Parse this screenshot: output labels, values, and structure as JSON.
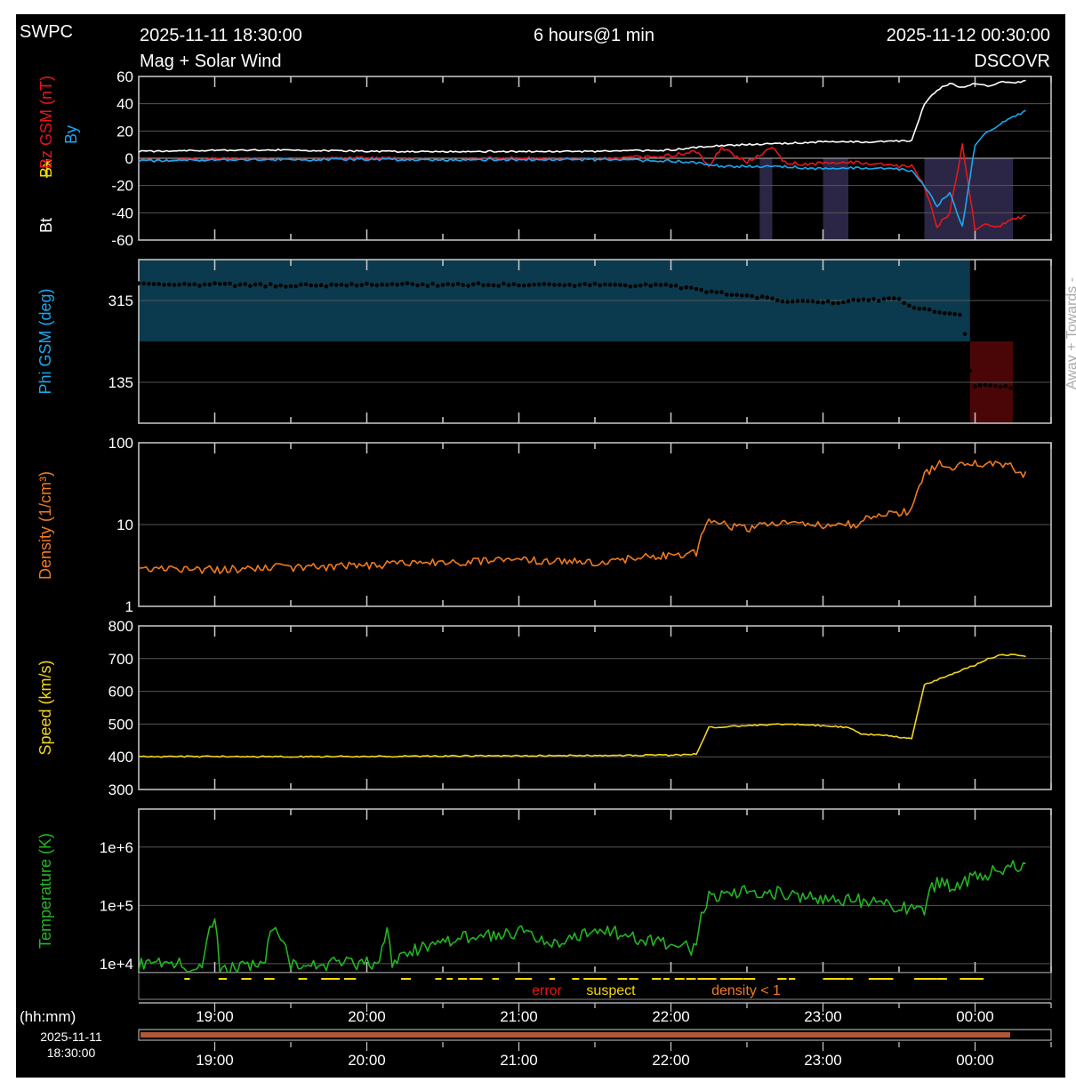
{
  "header": {
    "org": "SWPC",
    "start_time": "2025-11-11 18:30:00",
    "span": "6 hours@1 min",
    "end_time": "2025-11-12 00:30:00",
    "subtitle": "Mag + Solar Wind",
    "source": "DSCOVR"
  },
  "colors": {
    "background": "#000000",
    "frame": "#ffffff",
    "grid": "#555555",
    "bt": "#ffffff",
    "bz": "#e8161a",
    "bx": "#f5d90a",
    "by": "#1aa8f0",
    "density": "#f07a1e",
    "speed": "#f2d51d",
    "temperature": "#23b523",
    "phi_away": "#0b3a4e",
    "phi_towards": "#4a0606",
    "error": "#e8161a",
    "suspect": "#f5d90a",
    "density_flag": "#f07a1e",
    "timebar": "#b0563b"
  },
  "time_axis": {
    "start_hour": 18.5,
    "end_hour": 24.5,
    "tick_labels": [
      "19:00",
      "20:00",
      "21:00",
      "22:00",
      "23:00",
      "00:00"
    ],
    "unit_label": "(hh:mm)",
    "date_label": "2025-11-11",
    "time_label": "18:30:00"
  },
  "flags": {
    "error": "error",
    "suspect": "suspect",
    "density": "density < 1"
  },
  "chart_data": [
    {
      "type": "line",
      "name": "mag",
      "ylabel_parts": [
        "Bt",
        "Bx",
        "Bz GSM (nT)",
        "By"
      ],
      "ylim": [
        -60,
        60
      ],
      "ytick_labels": [
        "60",
        "40",
        "20",
        "0",
        "-20",
        "-40",
        "-60"
      ],
      "series": [
        {
          "name": "Bt",
          "key": "bt",
          "x": [
            "18:30",
            "19:00",
            "19:30",
            "20:00",
            "20:30",
            "21:00",
            "21:30",
            "22:00",
            "22:15",
            "22:30",
            "22:45",
            "23:00",
            "23:20",
            "23:35",
            "23:40",
            "23:45",
            "23:50",
            "23:55",
            "00:00",
            "00:05",
            "00:10",
            "00:15",
            "00:20"
          ],
          "values": [
            5,
            6,
            6,
            5,
            5,
            5,
            5,
            6,
            9,
            10,
            11,
            12,
            12,
            13,
            40,
            50,
            55,
            52,
            55,
            53,
            56,
            55,
            57
          ]
        },
        {
          "name": "Bz",
          "key": "bz",
          "x": [
            "18:30",
            "19:00",
            "19:30",
            "20:00",
            "20:30",
            "21:00",
            "21:30",
            "22:00",
            "22:10",
            "22:15",
            "22:20",
            "22:30",
            "22:40",
            "22:45",
            "22:50",
            "23:00",
            "23:15",
            "23:30",
            "23:35",
            "23:40",
            "23:45",
            "23:50",
            "23:55",
            "00:00",
            "00:05",
            "00:10",
            "00:15",
            "00:20"
          ],
          "values": [
            -2,
            0,
            -1,
            0,
            -1,
            0,
            -1,
            2,
            5,
            -5,
            8,
            -3,
            8,
            -3,
            -4,
            -4,
            -3,
            -6,
            -5,
            -20,
            -50,
            -40,
            10,
            -52,
            -48,
            -50,
            -45,
            -42
          ]
        },
        {
          "name": "By",
          "key": "by",
          "x": [
            "18:30",
            "19:00",
            "19:30",
            "20:00",
            "20:30",
            "21:00",
            "21:30",
            "22:00",
            "22:15",
            "22:20",
            "22:30",
            "22:45",
            "23:00",
            "23:15",
            "23:30",
            "23:35",
            "23:40",
            "23:45",
            "23:50",
            "23:55",
            "00:00",
            "00:05",
            "00:10",
            "00:15",
            "00:20"
          ],
          "values": [
            -2,
            -1,
            -1,
            -1,
            -1,
            -1,
            -1,
            -2,
            -4,
            -6,
            -6,
            -6,
            -8,
            -7,
            -8,
            -9,
            -20,
            -35,
            -25,
            -50,
            10,
            20,
            25,
            30,
            35
          ]
        }
      ],
      "away_towards_shading": [
        [
          "22:35",
          "22:40"
        ],
        [
          "23:00",
          "23:10"
        ],
        [
          "23:40",
          "00:15"
        ]
      ]
    },
    {
      "type": "scatter",
      "name": "phi",
      "ylabel": "Phi GSM (deg)",
      "right_label": "Away +   Towards -",
      "ylim": [
        45,
        405
      ],
      "ytick_labels": [
        "315",
        "135"
      ],
      "series": [
        {
          "name": "Phi GSM",
          "key": "phi",
          "x": [
            "18:30",
            "19:00",
            "19:30",
            "20:00",
            "20:30",
            "21:00",
            "21:30",
            "22:00",
            "22:15",
            "22:30",
            "22:45",
            "23:00",
            "23:15",
            "23:30",
            "23:35",
            "23:40",
            "23:45",
            "23:50",
            "23:55",
            "23:58",
            "00:00",
            "00:05",
            "00:10",
            "00:15",
            "00:20"
          ],
          "values": [
            350,
            350,
            348,
            350,
            350,
            350,
            349,
            348,
            335,
            325,
            315,
            310,
            315,
            318,
            300,
            295,
            290,
            285,
            280,
            160,
            125,
            128,
            125,
            123,
            123
          ]
        }
      ],
      "away_span": [
        "18:30",
        "23:58"
      ],
      "towards_span": [
        "23:58",
        "00:15"
      ]
    },
    {
      "type": "line",
      "name": "density",
      "ylabel": "Density (1/cm³)",
      "yscale": "log",
      "ylim": [
        1,
        100
      ],
      "ytick_labels": [
        "100",
        "10",
        "1"
      ],
      "series": [
        {
          "name": "Density",
          "key": "density",
          "x": [
            "18:30",
            "19:00",
            "19:30",
            "20:00",
            "20:30",
            "21:00",
            "21:30",
            "22:00",
            "22:10",
            "22:15",
            "22:30",
            "22:45",
            "23:00",
            "23:15",
            "23:20",
            "23:30",
            "23:35",
            "23:40",
            "23:45",
            "23:50",
            "00:00",
            "00:10",
            "00:15",
            "00:20"
          ],
          "values": [
            3.0,
            2.8,
            3.0,
            3.1,
            3.5,
            3.6,
            3.5,
            4.2,
            4.5,
            10.5,
            9.0,
            10.5,
            10.0,
            10.0,
            13.5,
            14.0,
            14.5,
            40,
            55,
            50,
            55,
            55,
            50,
            40
          ]
        }
      ]
    },
    {
      "type": "line",
      "name": "speed",
      "ylabel": "Speed (km/s)",
      "ylim": [
        300,
        800
      ],
      "ytick_labels": [
        "800",
        "700",
        "600",
        "500",
        "400",
        "300"
      ],
      "series": [
        {
          "name": "Speed",
          "key": "speed",
          "x": [
            "18:30",
            "19:00",
            "19:30",
            "20:00",
            "20:30",
            "21:00",
            "21:30",
            "22:00",
            "22:10",
            "22:15",
            "22:30",
            "22:45",
            "23:00",
            "23:10",
            "23:15",
            "23:25",
            "23:35",
            "23:40",
            "23:45",
            "23:50",
            "23:55",
            "00:00",
            "00:05",
            "00:10",
            "00:15",
            "00:20"
          ],
          "values": [
            400,
            401,
            400,
            401,
            402,
            403,
            404,
            405,
            408,
            490,
            495,
            500,
            495,
            490,
            470,
            465,
            455,
            620,
            635,
            650,
            665,
            680,
            700,
            710,
            712,
            708
          ]
        }
      ]
    },
    {
      "type": "line",
      "name": "temperature",
      "ylabel": "Temperature (K)",
      "yscale": "log",
      "ylim": [
        7000,
        4500000
      ],
      "ytick_labels": [
        "1e+6",
        "1e+5",
        "1e+4"
      ],
      "series": [
        {
          "name": "Temperature",
          "key": "temperature",
          "x": [
            "18:30",
            "18:55",
            "19:00",
            "19:02",
            "19:20",
            "19:22",
            "19:30",
            "20:00",
            "20:05",
            "20:08",
            "20:10",
            "20:30",
            "21:00",
            "21:15",
            "21:30",
            "21:50",
            "22:00",
            "22:10",
            "22:15",
            "22:30",
            "22:45",
            "23:00",
            "23:15",
            "23:30",
            "23:35",
            "23:40",
            "23:45",
            "23:50",
            "00:00",
            "00:10",
            "00:15",
            "00:20"
          ],
          "values": [
            9500,
            9500,
            50000,
            8500,
            9500,
            45000,
            10000,
            10000,
            10000,
            40000,
            10000,
            25000,
            35000,
            20000,
            40000,
            25000,
            20000,
            18000,
            140000,
            180000,
            160000,
            130000,
            120000,
            100000,
            80000,
            75000,
            260000,
            200000,
            300000,
            400000,
            500000,
            480000
          ]
        }
      ]
    }
  ]
}
